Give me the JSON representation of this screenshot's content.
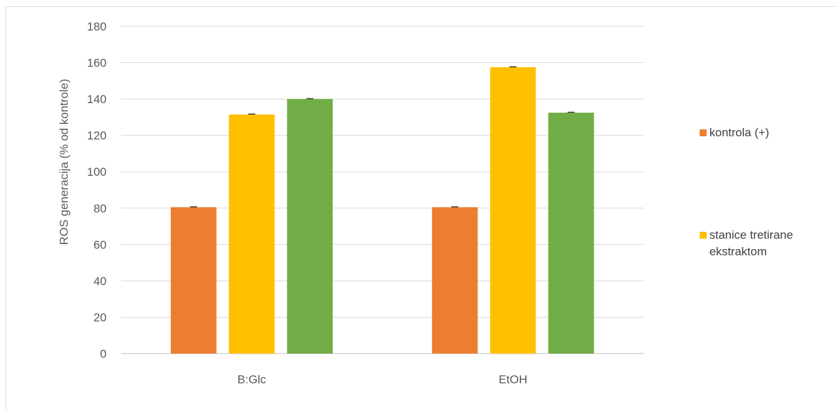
{
  "chart_data": {
    "type": "bar",
    "title": "",
    "xlabel": "",
    "ylabel": "ROS generacija (% od kontrole)",
    "ylim": [
      0,
      180
    ],
    "yticks": [
      0,
      20,
      40,
      60,
      80,
      100,
      120,
      140,
      160,
      180
    ],
    "categories": [
      "B:Glc",
      "EtOH"
    ],
    "series": [
      {
        "name": "kontrola (+)",
        "color": "#ed7d31",
        "values": [
          80.5,
          80.5
        ]
      },
      {
        "name": "stanice tretirane ekstraktom",
        "color": "#ffc000",
        "values": [
          131.5,
          157.5
        ]
      },
      {
        "color": "#70ad47",
        "values": [
          140,
          132.5
        ]
      }
    ],
    "grid": true,
    "legend_position": "right"
  }
}
